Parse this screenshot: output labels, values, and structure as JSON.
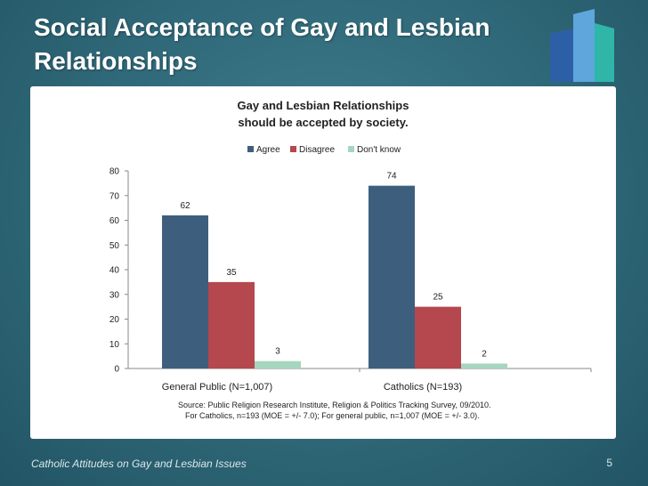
{
  "slide": {
    "title_line1": "Social Acceptance of Gay and Lesbian",
    "title_line2": "Relationships",
    "footer": "Catholic Attitudes on Gay and Lesbian Issues",
    "page_number": "5"
  },
  "colors": {
    "agree": "#3d5f7d",
    "disagree": "#b5474e",
    "dont_know": "#a6d6bf",
    "axis": "#888888"
  },
  "chart_data": {
    "type": "bar",
    "title_line1": "Gay and Lesbian Relationships",
    "title_line2": "should be accepted by society.",
    "categories": [
      "General Public (N=1,007)",
      "Catholics (N=193)"
    ],
    "series": [
      {
        "name": "Agree",
        "values": [
          62,
          74
        ]
      },
      {
        "name": "Disagree",
        "values": [
          35,
          25
        ]
      },
      {
        "name": "Don't know",
        "values": [
          3,
          2
        ]
      }
    ],
    "data_labels": [
      [
        "62",
        "74"
      ],
      [
        "35",
        "25"
      ],
      [
        "3",
        "2"
      ]
    ],
    "ylim": [
      0,
      80
    ],
    "yticks": [
      0,
      10,
      20,
      30,
      40,
      50,
      60,
      70,
      80
    ],
    "legend_position": "top-center",
    "source_line1": "Source: Public Religion Research Institute, Religion & Politics Tracking Survey, 09/2010.",
    "source_line2": "For Catholics, n=193 (MOE = +/- 7.0); For general public, n=1,007 (MOE = +/- 3.0)."
  }
}
